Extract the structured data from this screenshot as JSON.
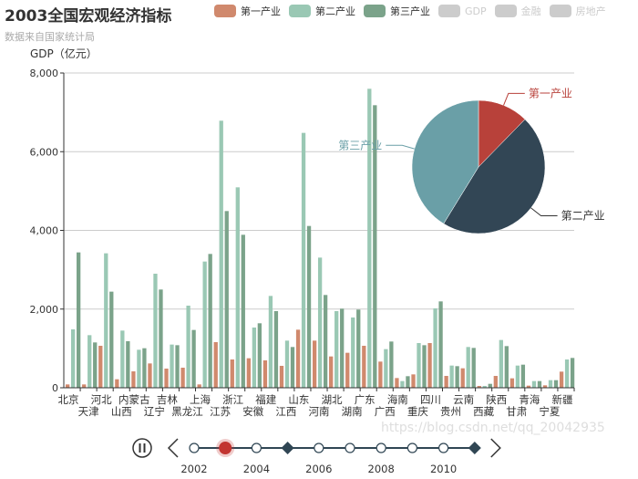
{
  "title": "2003全国宏观经济指标",
  "subtitle": "数据来自国家统计局",
  "legend": [
    {
      "name": "第一产业",
      "color": "#d0896d",
      "active": true
    },
    {
      "name": "第二产业",
      "color": "#9ac8b4",
      "active": true
    },
    {
      "name": "第三产业",
      "color": "#7ba38a",
      "active": true
    },
    {
      "name": "GDP",
      "color": "#cccccc",
      "active": false
    },
    {
      "name": "金融",
      "color": "#cccccc",
      "active": false
    },
    {
      "name": "房地产",
      "color": "#cccccc",
      "active": false
    }
  ],
  "chart_data": [
    {
      "type": "bar",
      "ylabel": "GDP（亿元）",
      "ylim": [
        0,
        8000
      ],
      "yticks": [
        "0",
        "2,000",
        "4,000",
        "6,000",
        "8,000"
      ],
      "grid": true,
      "categories": [
        "北京",
        "天津",
        "河北",
        "山西",
        "内蒙古",
        "辽宁",
        "吉林",
        "黑龙江",
        "上海",
        "江苏",
        "浙江",
        "安徽",
        "福建",
        "江西",
        "山东",
        "河南",
        "湖北",
        "湖南",
        "广东",
        "广西",
        "海南",
        "重庆",
        "四川",
        "贵州",
        "云南",
        "西藏",
        "陕西",
        "甘肃",
        "青海",
        "宁夏",
        "新疆"
      ],
      "series": [
        {
          "name": "第一产业",
          "color": "#d0896d",
          "values": [
            85,
            85,
            1067,
            216,
            417,
            618,
            487,
            510,
            85,
            1160,
            719,
            750,
            696,
            557,
            1476,
            1198,
            796,
            889,
            1067,
            665,
            247,
            340,
            1136,
            301,
            495,
            46,
            301,
            240,
            54,
            62,
            410
          ]
        },
        {
          "name": "第二产业",
          "color": "#9ac8b4",
          "values": [
            1484,
            1337,
            3417,
            1453,
            966,
            2899,
            1098,
            2087,
            3208,
            6787,
            5094,
            1531,
            2334,
            1198,
            6478,
            3308,
            1948,
            1786,
            7599,
            982,
            170,
            1136,
            2018,
            564,
            1036,
            46,
            1214,
            564,
            170,
            193,
            719
          ]
        },
        {
          "name": "第三产业",
          "color": "#7ba38a",
          "values": [
            3440,
            1152,
            2443,
            1183,
            1005,
            2497,
            1082,
            1469,
            3401,
            4491,
            3888,
            1639,
            1948,
            1036,
            4112,
            2358,
            2010,
            1987,
            7181,
            1175,
            294,
            1082,
            2195,
            549,
            1013,
            100,
            1059,
            587,
            170,
            193,
            758
          ]
        }
      ]
    },
    {
      "type": "pie",
      "slices": [
        {
          "name": "第一产业",
          "color": "#b8413a"
        },
        {
          "name": "第二产业",
          "color": "#324655"
        },
        {
          "name": "第三产业",
          "color": "#6a9fa7"
        }
      ]
    }
  ],
  "timeline": {
    "years": [
      "2002",
      "2003",
      "2004",
      "2005",
      "2006",
      "2007",
      "2008",
      "2009",
      "2010",
      "2011"
    ],
    "labels": [
      "2002",
      "2004",
      "2006",
      "2008",
      "2010"
    ],
    "current": "2003",
    "diamonds": [
      "2005",
      "2011"
    ],
    "play_state": "playing"
  },
  "watermark": "https://blog.csdn.net/qq_20042935"
}
